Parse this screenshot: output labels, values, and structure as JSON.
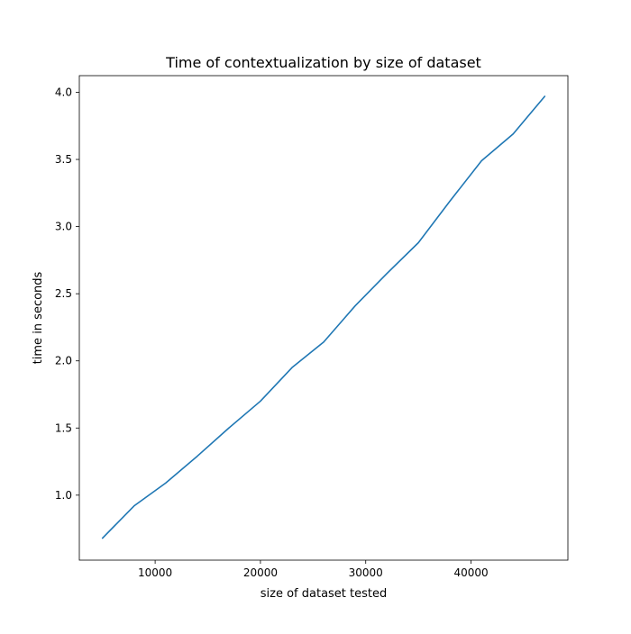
{
  "chart_data": {
    "type": "line",
    "title": "Time of contextualization by size of dataset",
    "xlabel": "size of dataset tested",
    "ylabel": "time in seconds",
    "xlim": [
      2800,
      49200
    ],
    "ylim": [
      0.516,
      4.124
    ],
    "xticks": [
      10000,
      20000,
      30000,
      40000
    ],
    "xtick_labels": [
      "10000",
      "20000",
      "30000",
      "40000"
    ],
    "yticks": [
      1.0,
      1.5,
      2.0,
      2.5,
      3.0,
      3.5,
      4.0
    ],
    "ytick_labels": [
      "1.0",
      "1.5",
      "2.0",
      "2.5",
      "3.0",
      "3.5",
      "4.0"
    ],
    "grid": false,
    "series": [
      {
        "color": "#1f77b4",
        "x": [
          5000,
          8000,
          11000,
          14000,
          17000,
          20000,
          23000,
          26000,
          29000,
          32000,
          35000,
          38000,
          41000,
          44000,
          47000
        ],
        "y": [
          0.68,
          0.92,
          1.09,
          1.29,
          1.5,
          1.7,
          1.95,
          2.14,
          2.41,
          2.65,
          2.88,
          3.19,
          3.49,
          3.69,
          3.97
        ]
      }
    ]
  }
}
